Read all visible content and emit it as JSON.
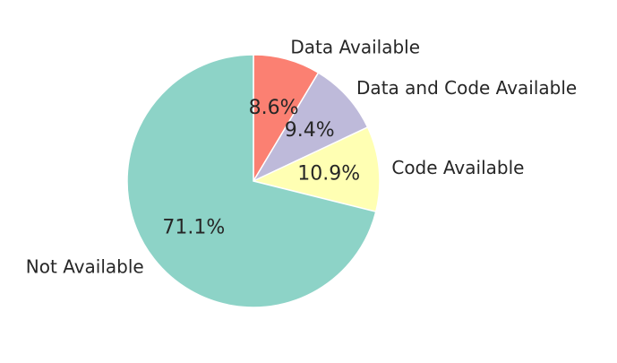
{
  "chart_data": {
    "type": "pie",
    "title": "",
    "start_angle_deg": 90,
    "direction": "clockwise",
    "slices": [
      {
        "label": "Data Available",
        "value": 8.6,
        "pct_label": "8.6%",
        "color": "#fb8072"
      },
      {
        "label": "Data and Code Available",
        "value": 9.4,
        "pct_label": "9.4%",
        "color": "#bebada"
      },
      {
        "label": "Code Available",
        "value": 10.9,
        "pct_label": "10.9%",
        "color": "#ffffb3"
      },
      {
        "label": "Not Available",
        "value": 71.1,
        "pct_label": "71.1%",
        "color": "#8dd3c7"
      }
    ]
  }
}
